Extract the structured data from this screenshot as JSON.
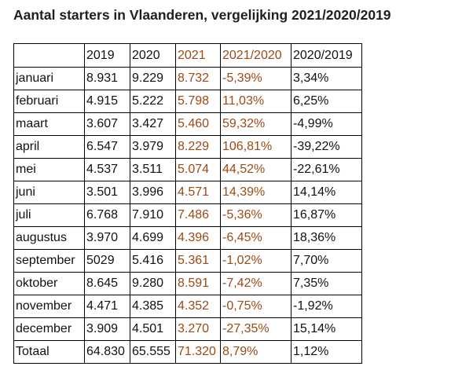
{
  "title": "Aantal starters in Vlaanderen, vergelijking 2021/2020/2019",
  "accent_color": "#9c4a16",
  "table": {
    "headers": [
      "",
      "2019",
      "2020",
      "2021",
      "2021/2020",
      "2020/2019"
    ],
    "rows": [
      [
        "januari",
        "8.931",
        "9.229",
        "8.732",
        "-5,39%",
        "3,34%"
      ],
      [
        "februari",
        "4.915",
        "5.222",
        "5.798",
        "11,03%",
        "6,25%"
      ],
      [
        "maart",
        "3.607",
        "3.427",
        "5.460",
        "59,32%",
        "-4,99%"
      ],
      [
        "april",
        "6.547",
        "3.979",
        "8.229",
        "106,81%",
        "-39,22%"
      ],
      [
        "mei",
        "4.537",
        "3.511",
        "5.074",
        "44,52%",
        "-22,61%"
      ],
      [
        "juni",
        "3.501",
        "3.996",
        "4.571",
        "14,39%",
        "14,14%"
      ],
      [
        "juli",
        "6.768",
        "7.910",
        "7.486",
        "-5,36%",
        "16,87%"
      ],
      [
        "augustus",
        "3.970",
        "4.699",
        "4.396",
        "-6,45%",
        "18,36%"
      ],
      [
        "september",
        "5029",
        "5.416",
        "5.361",
        "-1,02%",
        "7,70%"
      ],
      [
        "oktober",
        "8.645",
        "9.280",
        "8.591",
        "-7,42%",
        "7,35%"
      ],
      [
        "november",
        "4.471",
        "4.385",
        "4.352",
        "-0,75%",
        "-1,92%"
      ],
      [
        "december",
        "3.909",
        "4.501",
        "3.270",
        "-27,35%",
        "15,14%"
      ],
      [
        "Totaal",
        "64.830",
        "65.555",
        "71.320",
        "8,79%",
        "1,12%"
      ]
    ]
  }
}
